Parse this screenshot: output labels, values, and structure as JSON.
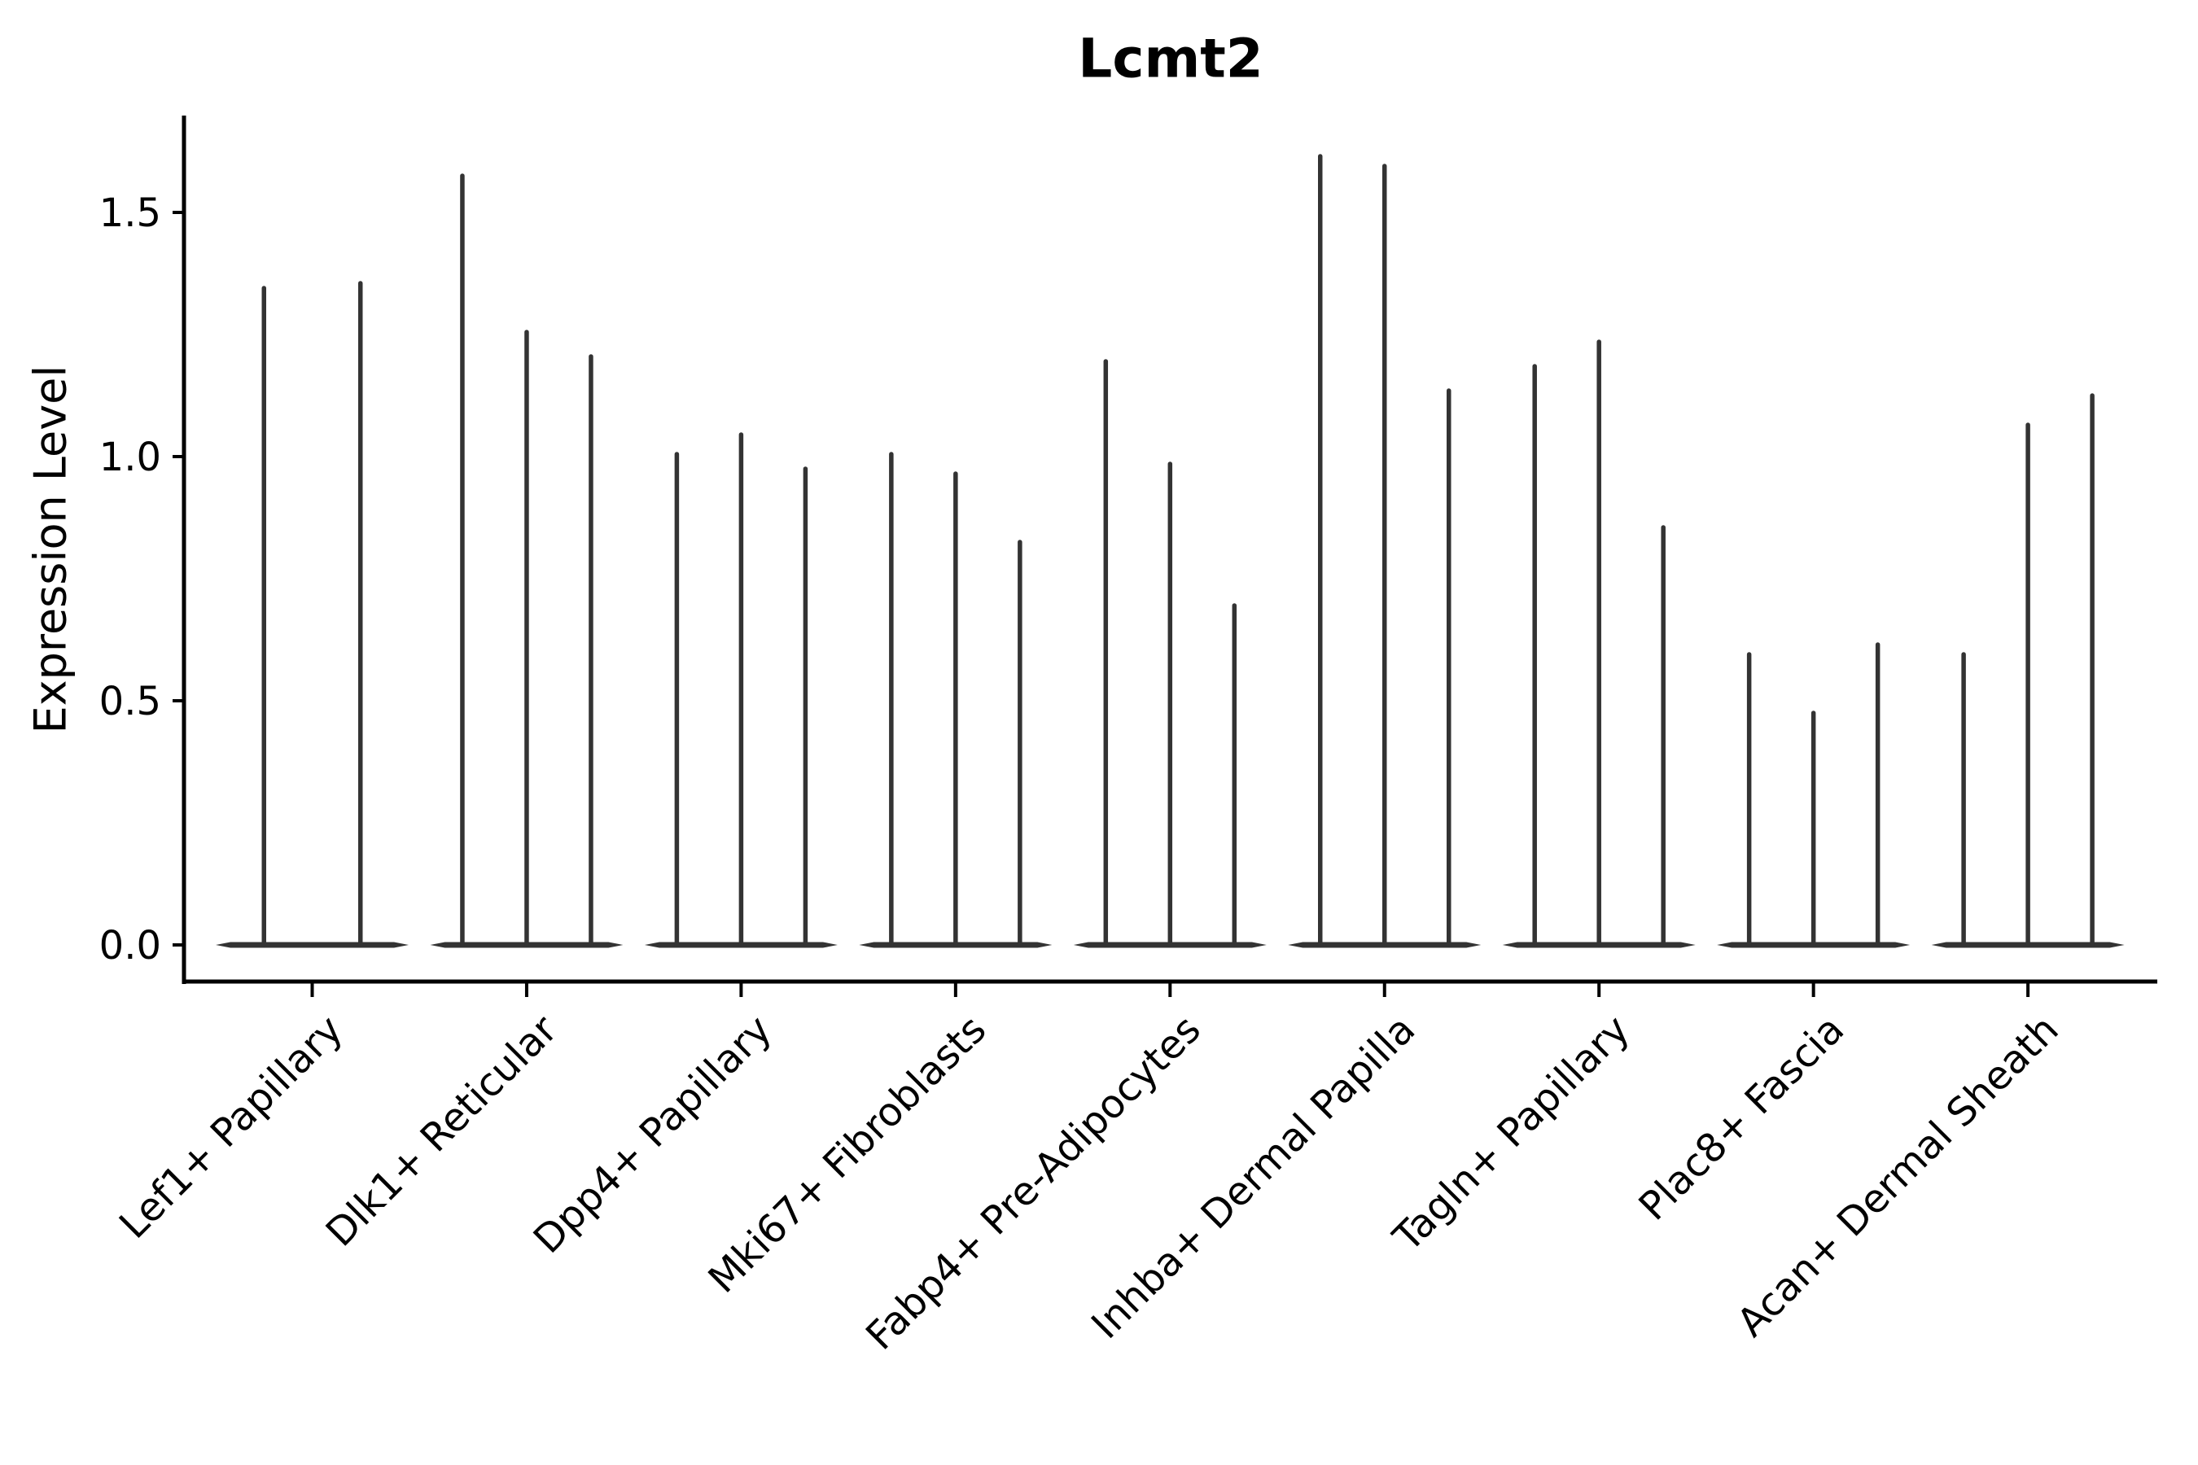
{
  "chart_data": {
    "type": "violin",
    "title": "Lcmt2",
    "ylabel": "Expression Level",
    "xlabel": "",
    "yticks": [
      0.0,
      0.5,
      1.0,
      1.5
    ],
    "ylim": [
      -0.08,
      1.7
    ],
    "grid": false,
    "legend": "none",
    "x_tick_rotation": 45,
    "categories": [
      "Lef1+ Papillary",
      "Dlk1+ Reticular",
      "Dpp4+ Papillary",
      "Mki67+ Fibroblasts",
      "Fabp4+ Pre-Adipocytes",
      "Inhba+ Dermal Papilla",
      "Tagln+ Papillary",
      "Plac8+ Fascia",
      "Acan+ Dermal Sheath"
    ],
    "groups": [
      {
        "label": "Lef1+ Papillary",
        "violin_peaks": [
          1.35,
          1.36
        ]
      },
      {
        "label": "Dlk1+ Reticular",
        "violin_peaks": [
          1.58,
          1.26,
          1.21
        ]
      },
      {
        "label": "Dpp4+ Papillary",
        "violin_peaks": [
          1.01,
          1.05,
          0.98
        ]
      },
      {
        "label": "Mki67+ Fibroblasts",
        "violin_peaks": [
          1.01,
          0.97,
          0.83
        ]
      },
      {
        "label": "Fabp4+ Pre-Adipocytes",
        "violin_peaks": [
          1.2,
          0.99,
          0.7
        ]
      },
      {
        "label": "Inhba+ Dermal Papilla",
        "violin_peaks": [
          1.62,
          1.6,
          1.14
        ]
      },
      {
        "label": "Tagln+ Papillary",
        "violin_peaks": [
          1.19,
          1.24,
          0.86
        ]
      },
      {
        "label": "Plac8+ Fascia",
        "violin_peaks": [
          0.6,
          0.48,
          0.62
        ]
      },
      {
        "label": "Acan+ Dermal Sheath",
        "violin_peaks": [
          0.6,
          1.07,
          1.13
        ]
      }
    ],
    "baseline_value": 0.0,
    "colors": {
      "violin": "#333333",
      "axis": "#000000",
      "text": "#000000",
      "background": "#ffffff"
    }
  }
}
